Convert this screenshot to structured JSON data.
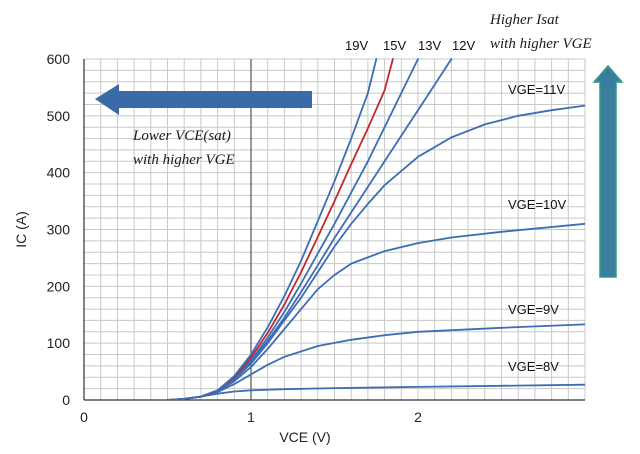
{
  "chart_data": {
    "type": "line",
    "xlabel": "VCE (V)",
    "ylabel": "IC (A)",
    "xlim": [
      0,
      3
    ],
    "ylim": [
      0,
      600
    ],
    "x_ticks": [
      "0",
      "1",
      "2"
    ],
    "y_ticks": [
      "0",
      "100",
      "200",
      "300",
      "400",
      "500",
      "600"
    ],
    "grid": true,
    "series": [
      {
        "name": "VGE=8V",
        "label": "VGE=8V",
        "color": "#3d6db5",
        "x": [
          0.5,
          0.6,
          0.7,
          0.8,
          0.9,
          1.0,
          1.2,
          1.5,
          2.0,
          2.5,
          3.0
        ],
        "y": [
          0,
          2,
          6,
          11,
          15,
          17,
          19,
          21,
          23,
          25,
          27
        ]
      },
      {
        "name": "VGE=9V",
        "label": "VGE=9V",
        "color": "#3d6db5",
        "x": [
          0.5,
          0.6,
          0.7,
          0.8,
          0.9,
          1.0,
          1.1,
          1.2,
          1.4,
          1.6,
          1.8,
          2.0,
          2.5,
          3.0
        ],
        "y": [
          0,
          2,
          6,
          14,
          28,
          45,
          62,
          76,
          95,
          106,
          114,
          120,
          127,
          133
        ]
      },
      {
        "name": "VGE=10V",
        "label": "VGE=10V",
        "color": "#3d6db5",
        "x": [
          0.5,
          0.6,
          0.7,
          0.8,
          0.9,
          1.0,
          1.1,
          1.2,
          1.3,
          1.4,
          1.5,
          1.6,
          1.8,
          2.0,
          2.2,
          2.5,
          3.0
        ],
        "y": [
          0,
          2,
          6,
          15,
          33,
          58,
          90,
          125,
          160,
          195,
          220,
          240,
          262,
          276,
          286,
          296,
          310
        ]
      },
      {
        "name": "VGE=11V",
        "label": "VGE=11V",
        "color": "#3d6db5",
        "x": [
          0.5,
          0.6,
          0.7,
          0.8,
          0.9,
          1.0,
          1.1,
          1.2,
          1.3,
          1.4,
          1.5,
          1.6,
          1.7,
          1.8,
          2.0,
          2.2,
          2.4,
          2.6,
          2.8,
          3.0
        ],
        "y": [
          0,
          2,
          6,
          16,
          36,
          64,
          100,
          140,
          180,
          225,
          270,
          310,
          345,
          378,
          428,
          462,
          485,
          500,
          510,
          518
        ]
      },
      {
        "name": "12V",
        "label": "12V",
        "color": "#3d6db5",
        "x": [
          0.5,
          0.6,
          0.7,
          0.8,
          0.9,
          1.0,
          1.1,
          1.2,
          1.3,
          1.4,
          1.5,
          1.6,
          1.7,
          1.8,
          1.9,
          2.0,
          2.1,
          2.2
        ],
        "y": [
          0,
          2,
          6,
          16,
          37,
          67,
          104,
          145,
          190,
          237,
          285,
          330,
          375,
          420,
          465,
          510,
          555,
          600
        ]
      },
      {
        "name": "13V",
        "label": "13V",
        "color": "#3d6db5",
        "x": [
          0.5,
          0.6,
          0.7,
          0.8,
          0.9,
          1.0,
          1.1,
          1.2,
          1.3,
          1.4,
          1.5,
          1.6,
          1.7,
          1.8,
          1.9,
          2.0
        ],
        "y": [
          0,
          2,
          6,
          16,
          38,
          70,
          110,
          155,
          205,
          258,
          310,
          365,
          420,
          480,
          540,
          600
        ]
      },
      {
        "name": "15V",
        "label": "15V",
        "color": "#c0282d",
        "x": [
          0.5,
          0.6,
          0.7,
          0.8,
          0.9,
          1.0,
          1.1,
          1.2,
          1.3,
          1.4,
          1.5,
          1.6,
          1.7,
          1.8,
          1.85
        ],
        "y": [
          0,
          2,
          6,
          17,
          40,
          75,
          118,
          168,
          225,
          287,
          350,
          415,
          478,
          545,
          600
        ]
      },
      {
        "name": "19V",
        "label": "19V",
        "color": "#3d6db5",
        "x": [
          0.5,
          0.6,
          0.7,
          0.8,
          0.9,
          1.0,
          1.1,
          1.2,
          1.3,
          1.4,
          1.5,
          1.6,
          1.7,
          1.75
        ],
        "y": [
          0,
          2,
          6,
          17,
          42,
          80,
          128,
          183,
          245,
          315,
          385,
          460,
          540,
          600
        ]
      }
    ],
    "annotations": {
      "left_note": [
        "Lower VCE(sat)",
        "with higher VGE"
      ],
      "top_note": [
        "Higher Isat",
        "with higher VGE"
      ]
    }
  },
  "colors": {
    "left_arrow": "#3a6aa8",
    "up_arrow": "#3a7d9c",
    "up_arrow_outline": "#2e9a8a"
  }
}
